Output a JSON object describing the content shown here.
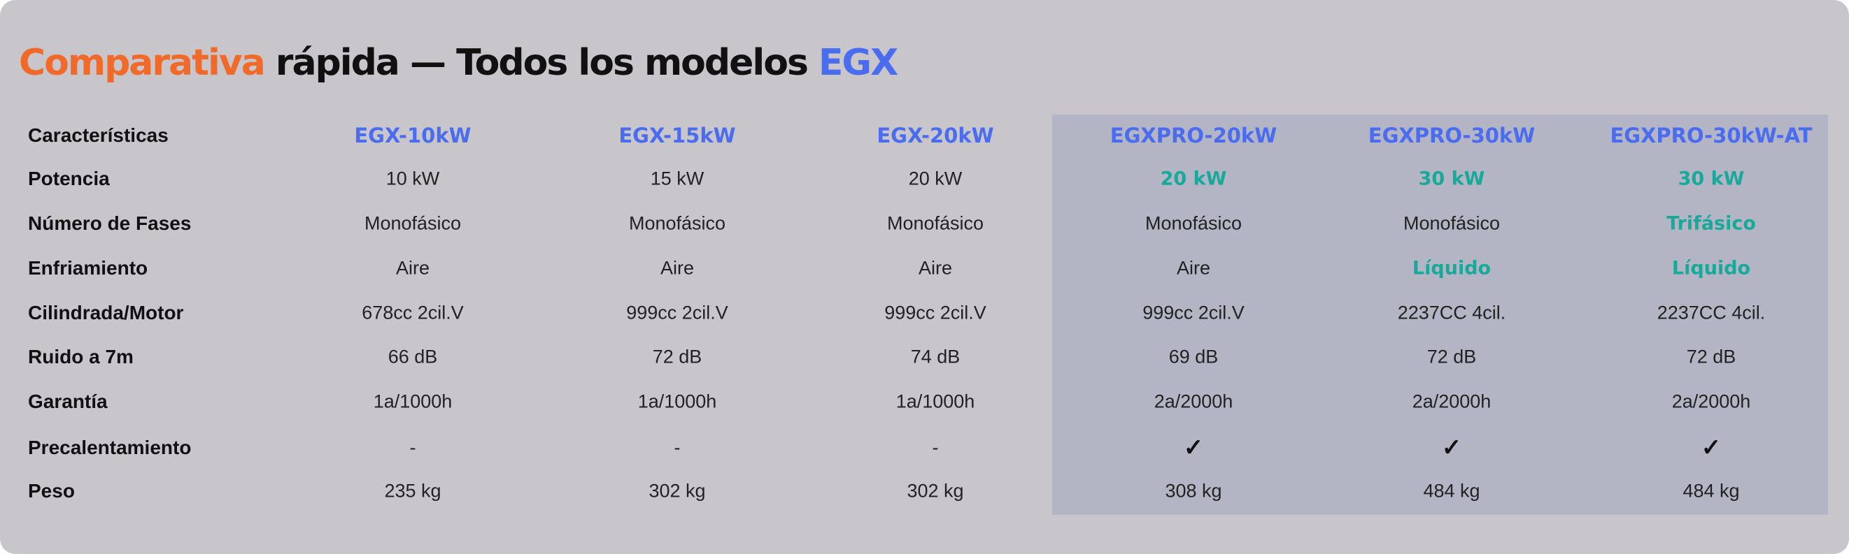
{
  "title": {
    "parts": [
      "Comparativa",
      "rápida — Todos los modelos",
      "EGX"
    ]
  },
  "table": {
    "header": [
      "Características",
      "EGX-10kW",
      "EGX-15kW",
      "EGX-20kW",
      "EGXPRO-20kW",
      "EGXPRO-30kW",
      "EGXPRO-30kW-AT"
    ],
    "rows": [
      [
        "Potencia",
        "10 kW",
        "15 kW",
        "20 kW",
        "20 kW",
        "30 kW",
        "30 kW"
      ],
      [
        "Número de Fases",
        "Monofásico",
        "Monofásico",
        "Monofásico",
        "Monofásico",
        "Monofásico",
        "Trifásico"
      ],
      [
        "Enfriamiento",
        "Aire",
        "Aire",
        "Aire",
        "Aire",
        "Líquido",
        "Líquido"
      ],
      [
        "Cilindrada/Motor",
        "678cc 2cil.V",
        "999cc 2cil.V",
        "999cc 2cil.V",
        "999cc 2cil.V",
        "2237CC 4cil.",
        "2237CC 4cil."
      ],
      [
        "Ruido a 7m",
        "66 dB",
        "72 dB",
        "74 dB",
        "69 dB",
        "72 dB",
        "72 dB"
      ],
      [
        "Garantía",
        "1a/1000h",
        "1a/1000h",
        "1a/1000h",
        "2a/2000h",
        "2a/2000h",
        "2a/2000h"
      ],
      [
        "Precalentamiento",
        "-",
        "-",
        "-",
        "✓",
        "✓",
        "✓"
      ],
      [
        "Peso",
        "235 kg",
        "302 kg",
        "302 kg",
        "308 kg",
        "484 kg",
        "484 kg"
      ]
    ]
  }
}
